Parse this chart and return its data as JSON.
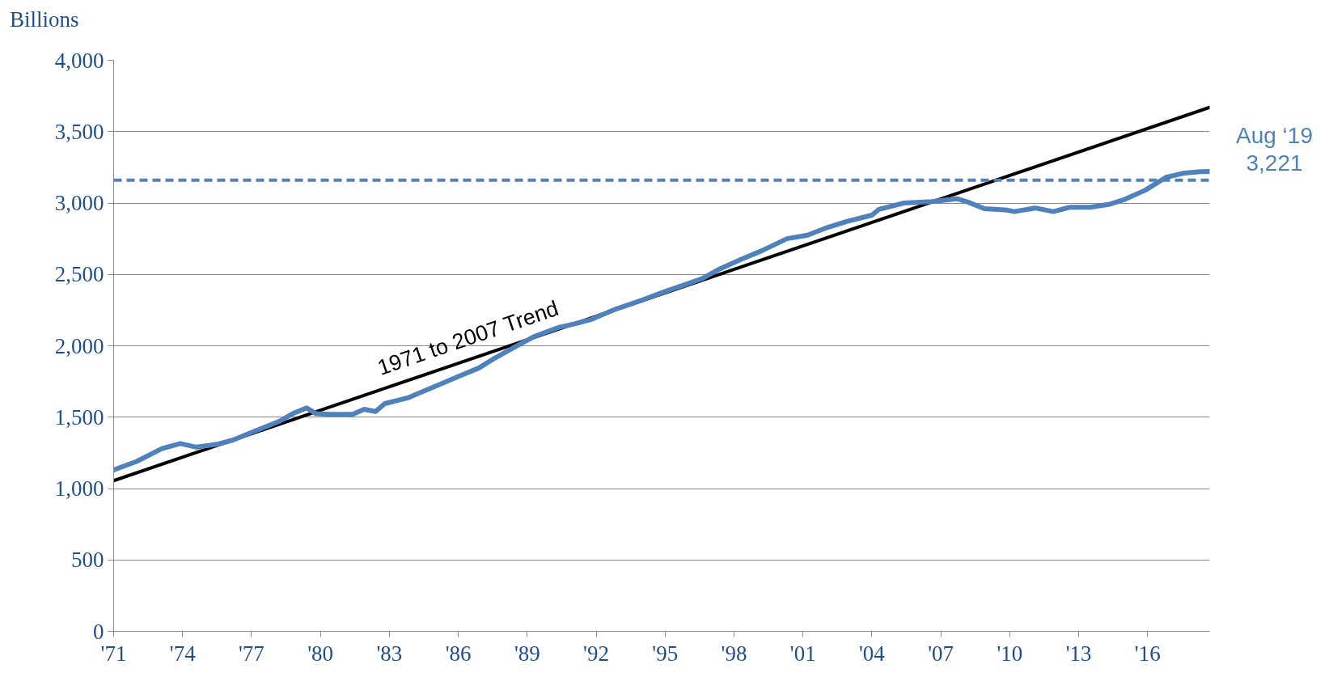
{
  "chart_data": {
    "type": "line",
    "ylabel": "Billions",
    "xlim": [
      1971,
      2018.7
    ],
    "ylim": [
      0,
      4000
    ],
    "xticks": [
      {
        "value": 1971,
        "label": "'71"
      },
      {
        "value": 1974,
        "label": "'74"
      },
      {
        "value": 1977,
        "label": "'77"
      },
      {
        "value": 1980,
        "label": "'80"
      },
      {
        "value": 1983,
        "label": "'83"
      },
      {
        "value": 1986,
        "label": "'86"
      },
      {
        "value": 1989,
        "label": "'89"
      },
      {
        "value": 1992,
        "label": "'92"
      },
      {
        "value": 1995,
        "label": "'95"
      },
      {
        "value": 1998,
        "label": "'98"
      },
      {
        "value": 2001,
        "label": "'01"
      },
      {
        "value": 2004,
        "label": "'04"
      },
      {
        "value": 2007,
        "label": "'07"
      },
      {
        "value": 2010,
        "label": "'10"
      },
      {
        "value": 2013,
        "label": "'13"
      },
      {
        "value": 2016,
        "label": "'16"
      }
    ],
    "yticks": [
      0,
      {
        "value": 500,
        "label": "500"
      },
      {
        "value": 1000,
        "label": "1,000"
      },
      {
        "value": 1500,
        "label": "1,500"
      },
      {
        "value": 2000,
        "label": "2,000"
      },
      {
        "value": 2500,
        "label": "2,500"
      },
      {
        "value": 3000,
        "label": "3,000"
      },
      {
        "value": 3500,
        "label": "3,500"
      },
      {
        "value": 4000,
        "label": "4,000"
      }
    ],
    "grid": "y",
    "series": [
      {
        "color": "#4f81bd",
        "x": [
          1971,
          1972,
          1973.1,
          1973.9,
          1974.6,
          1975.5,
          1976.2,
          1977.1,
          1978.2,
          1978.8,
          1979.4,
          1979.8,
          1980.4,
          1981.4,
          1981.9,
          1982.4,
          1982.8,
          1983.8,
          1984.9,
          1986,
          1986.9,
          1987.6,
          1988.5,
          1989.3,
          1990.4,
          1991.1,
          1991.8,
          1992.9,
          1994,
          1995,
          1995.9,
          1996.6,
          1997.4,
          1998.3,
          1999.2,
          2000.3,
          2001.2,
          2002,
          2002.9,
          2004,
          2004.3,
          2005.4,
          2006.6,
          2007.7,
          2008.2,
          2008.9,
          2009.9,
          2010.2,
          2011.1,
          2011.9,
          2012.6,
          2013.5,
          2014.3,
          2015,
          2015.9,
          2016.8,
          2017.6,
          2018.3,
          2018.7
        ],
        "values": [
          1130,
          1190,
          1280,
          1315,
          1290,
          1310,
          1340,
          1400,
          1470,
          1525,
          1565,
          1525,
          1520,
          1520,
          1555,
          1540,
          1595,
          1635,
          1710,
          1785,
          1845,
          1915,
          1995,
          2065,
          2130,
          2155,
          2185,
          2260,
          2320,
          2380,
          2430,
          2470,
          2540,
          2605,
          2665,
          2750,
          2775,
          2825,
          2870,
          2915,
          2955,
          3000,
          3010,
          3030,
          3005,
          2960,
          2950,
          2940,
          2965,
          2940,
          2970,
          2970,
          2990,
          3025,
          3090,
          3180,
          3210,
          3220,
          3221
        ]
      },
      {
        "name": "1971 to 2007 Trend",
        "color": "#000000",
        "x": [
          1971,
          2018.7
        ],
        "values": [
          1055,
          3670
        ]
      }
    ],
    "ref_lines": [
      {
        "axis": "y",
        "value": 3160,
        "color": "#4f81bd",
        "line_style": "dashed"
      }
    ],
    "annotations": [
      {
        "text": "Aug ‘19\n3,221",
        "x": 2018.7,
        "y": 3221
      }
    ]
  }
}
